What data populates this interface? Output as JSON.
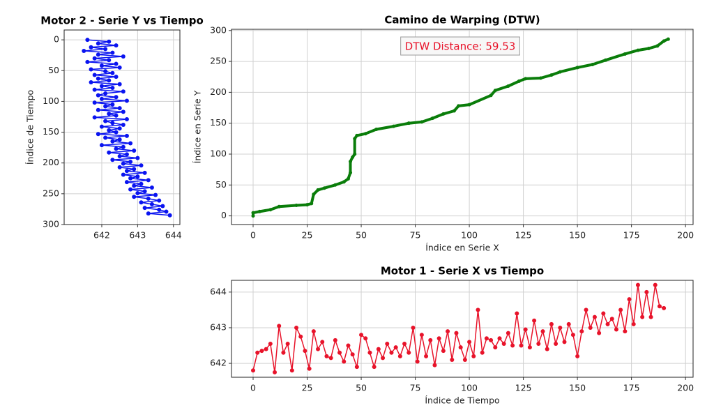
{
  "chart_data": [
    {
      "type": "line",
      "orientation": "horizontal",
      "title": "Motor 2 - Serie Y vs Tiempo",
      "ylabel": "Índice de Tiempo",
      "color": "#0a14f0",
      "grid": true,
      "y_inverted": true,
      "xlim": [
        640.95,
        644.18
      ],
      "xticks": [
        642,
        643,
        644
      ],
      "ylim": [
        -16,
        300
      ],
      "yticks": [
        0,
        50,
        100,
        150,
        200,
        250,
        300
      ],
      "index": [
        0,
        3,
        6,
        9,
        12,
        15,
        18,
        21,
        24,
        27,
        30,
        33,
        36,
        39,
        42,
        45,
        48,
        51,
        54,
        57,
        60,
        63,
        66,
        69,
        72,
        75,
        78,
        81,
        84,
        87,
        90,
        93,
        96,
        99,
        102,
        105,
        108,
        111,
        114,
        117,
        120,
        123,
        126,
        129,
        132,
        135,
        138,
        141,
        144,
        147,
        150,
        153,
        156,
        159,
        162,
        165,
        168,
        171,
        174,
        177,
        180,
        183,
        186,
        189,
        192,
        195,
        198,
        201,
        204,
        207,
        210,
        213,
        216,
        219,
        222,
        225,
        228,
        231,
        234,
        237,
        240,
        243,
        246,
        249,
        252,
        255,
        258,
        261,
        264,
        267,
        270,
        273,
        276,
        279,
        282,
        285
      ],
      "values": [
        641.6,
        642.2,
        641.9,
        642.4,
        641.7,
        642.1,
        641.5,
        642.3,
        641.9,
        642.6,
        641.8,
        642.2,
        641.6,
        642.4,
        642.0,
        642.5,
        641.7,
        642.1,
        642.3,
        641.8,
        642.4,
        641.9,
        642.2,
        641.7,
        642.5,
        642.0,
        642.3,
        641.8,
        642.6,
        642.1,
        641.9,
        642.4,
        642.0,
        642.7,
        641.8,
        642.3,
        642.1,
        642.5,
        641.9,
        642.6,
        642.2,
        642.4,
        641.8,
        642.7,
        642.1,
        642.3,
        642.6,
        642.0,
        642.5,
        642.2,
        642.4,
        641.9,
        642.7,
        642.1,
        642.5,
        642.3,
        642.8,
        642.0,
        642.6,
        642.4,
        642.9,
        642.2,
        642.7,
        642.5,
        643.0,
        642.3,
        642.8,
        642.6,
        643.1,
        642.5,
        642.9,
        642.7,
        643.2,
        642.6,
        643.0,
        642.8,
        643.3,
        642.7,
        643.1,
        642.9,
        643.4,
        642.8,
        643.2,
        643.0,
        643.5,
        642.9,
        643.3,
        643.6,
        643.1,
        643.4,
        643.7,
        643.2,
        643.6,
        643.8,
        643.3,
        643.9
      ]
    },
    {
      "type": "line",
      "title": "Camino de Warping (DTW)",
      "xlabel": "Índice en Serie X",
      "ylabel": "Índice en Serie Y",
      "color": "#0a7d0a",
      "grid": true,
      "annotation": "DTW Distance: 59.53",
      "xlim": [
        -10,
        203.5
      ],
      "xticks": [
        0,
        25,
        50,
        75,
        100,
        125,
        150,
        175,
        200
      ],
      "ylim": [
        -14,
        302
      ],
      "yticks": [
        0,
        50,
        100,
        150,
        200,
        250,
        300
      ],
      "x": [
        0,
        0,
        3,
        8,
        12,
        20,
        25,
        27,
        28,
        30,
        33,
        38,
        42,
        44,
        45,
        45,
        46,
        47,
        47,
        48,
        52,
        57,
        65,
        72,
        78,
        83,
        88,
        93,
        95,
        100,
        110,
        112,
        118,
        123,
        126,
        133,
        138,
        142,
        150,
        157,
        163,
        172,
        178,
        183,
        187,
        190,
        192
      ],
      "values": [
        0,
        5,
        7,
        10,
        15,
        17,
        18,
        20,
        35,
        42,
        45,
        50,
        55,
        60,
        70,
        88,
        95,
        100,
        125,
        130,
        133,
        140,
        145,
        150,
        152,
        158,
        165,
        170,
        178,
        180,
        195,
        203,
        210,
        218,
        222,
        223,
        228,
        233,
        240,
        245,
        252,
        262,
        268,
        271,
        275,
        283,
        286
      ]
    },
    {
      "type": "line",
      "title": "Motor 1 - Serie X vs Tiempo",
      "xlabel": "Índice de Tiempo",
      "color": "#e8132a",
      "grid": true,
      "xlim": [
        -10,
        203.5
      ],
      "xticks": [
        0,
        25,
        50,
        75,
        100,
        125,
        150,
        175,
        200
      ],
      "ylim": [
        641.61,
        644.33
      ],
      "yticks": [
        642,
        643,
        644
      ],
      "x": [
        0,
        2,
        4,
        6,
        8,
        10,
        12,
        14,
        16,
        18,
        20,
        22,
        24,
        26,
        28,
        30,
        32,
        34,
        36,
        38,
        40,
        42,
        44,
        46,
        48,
        50,
        52,
        54,
        56,
        58,
        60,
        62,
        64,
        66,
        68,
        70,
        72,
        74,
        76,
        78,
        80,
        82,
        84,
        86,
        88,
        90,
        92,
        94,
        96,
        98,
        100,
        102,
        104,
        106,
        108,
        110,
        112,
        114,
        116,
        118,
        120,
        122,
        124,
        126,
        128,
        130,
        132,
        134,
        136,
        138,
        140,
        142,
        144,
        146,
        148,
        150,
        152,
        154,
        156,
        158,
        160,
        162,
        164,
        166,
        168,
        170,
        172,
        174,
        176,
        178,
        180,
        182,
        184,
        186,
        188,
        190
      ],
      "values": [
        641.8,
        642.3,
        642.35,
        642.4,
        642.55,
        641.75,
        643.05,
        642.3,
        642.55,
        641.8,
        643.0,
        642.75,
        642.35,
        641.85,
        642.9,
        642.4,
        642.6,
        642.2,
        642.15,
        642.65,
        642.3,
        642.05,
        642.5,
        642.25,
        641.9,
        642.8,
        642.7,
        642.3,
        641.9,
        642.4,
        642.15,
        642.55,
        642.3,
        642.45,
        642.2,
        642.55,
        642.3,
        643.0,
        642.05,
        642.8,
        642.2,
        642.65,
        641.95,
        642.7,
        642.35,
        642.9,
        642.1,
        642.85,
        642.45,
        642.1,
        642.6,
        642.2,
        643.5,
        642.3,
        642.7,
        642.65,
        642.45,
        642.7,
        642.55,
        642.85,
        642.5,
        643.4,
        642.5,
        642.95,
        642.45,
        643.2,
        642.55,
        642.9,
        642.4,
        643.1,
        642.55,
        643.0,
        642.6,
        643.1,
        642.8,
        642.2,
        642.9,
        643.5,
        643.0,
        643.3,
        642.85,
        643.4,
        643.1,
        643.25,
        642.95,
        643.5,
        642.9,
        643.8,
        643.1,
        644.2,
        643.3,
        644.0,
        643.3,
        644.2,
        643.6,
        643.55
      ]
    }
  ]
}
